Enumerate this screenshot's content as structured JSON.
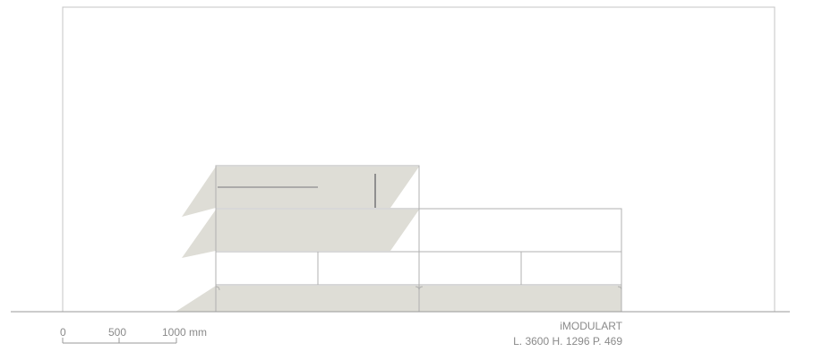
{
  "scale_bar": {
    "ticks": [
      "0",
      "500",
      "1000 mm"
    ]
  },
  "product": {
    "name": "iMODULART",
    "dimensions": "L. 3600 H. 1296 P. 469"
  },
  "colors": {
    "line": "#b9b9b9",
    "shadow": "#deddd6",
    "text": "#8a8a8a",
    "background": "#ffffff"
  }
}
